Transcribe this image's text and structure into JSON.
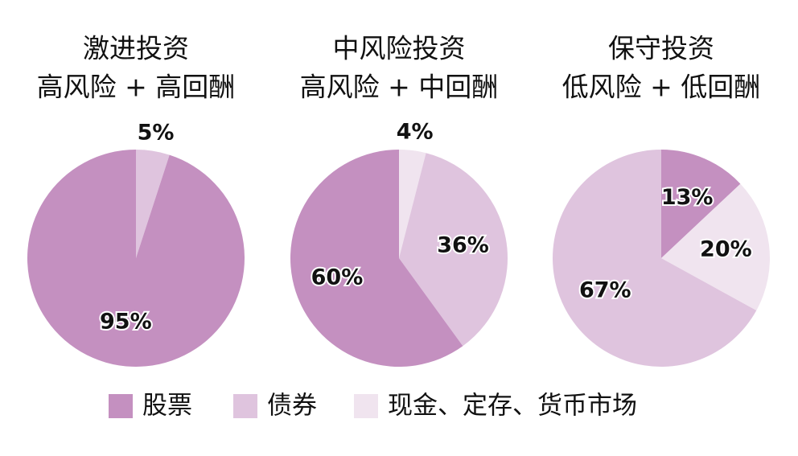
{
  "chart_data": [
    {
      "type": "pie",
      "title": "激进投资",
      "subtitle": "高风险 + 高回酬",
      "categories": [
        "债券",
        "股票"
      ],
      "values": [
        5,
        95
      ],
      "value_labels": [
        "5%",
        "95%"
      ]
    },
    {
      "type": "pie",
      "title": "中风险投资",
      "subtitle": "高风险 + 中回酬",
      "categories": [
        "现金、定存、货币市场",
        "债券",
        "股票"
      ],
      "values": [
        4,
        36,
        60
      ],
      "value_labels": [
        "4%",
        "36%",
        "60%"
      ]
    },
    {
      "type": "pie",
      "title": "保守投资",
      "subtitle": "低风险 + 低回酬",
      "categories": [
        "股票",
        "现金、定存、货币市场",
        "债券"
      ],
      "values": [
        13,
        20,
        67
      ],
      "value_labels": [
        "13%",
        "20%",
        "67%"
      ]
    }
  ],
  "legend": [
    {
      "name": "股票",
      "color": "#c490c0"
    },
    {
      "name": "债券",
      "color": "#dfc4de"
    },
    {
      "name": "现金、定存、货币市场",
      "color": "#f0e4ef"
    }
  ]
}
